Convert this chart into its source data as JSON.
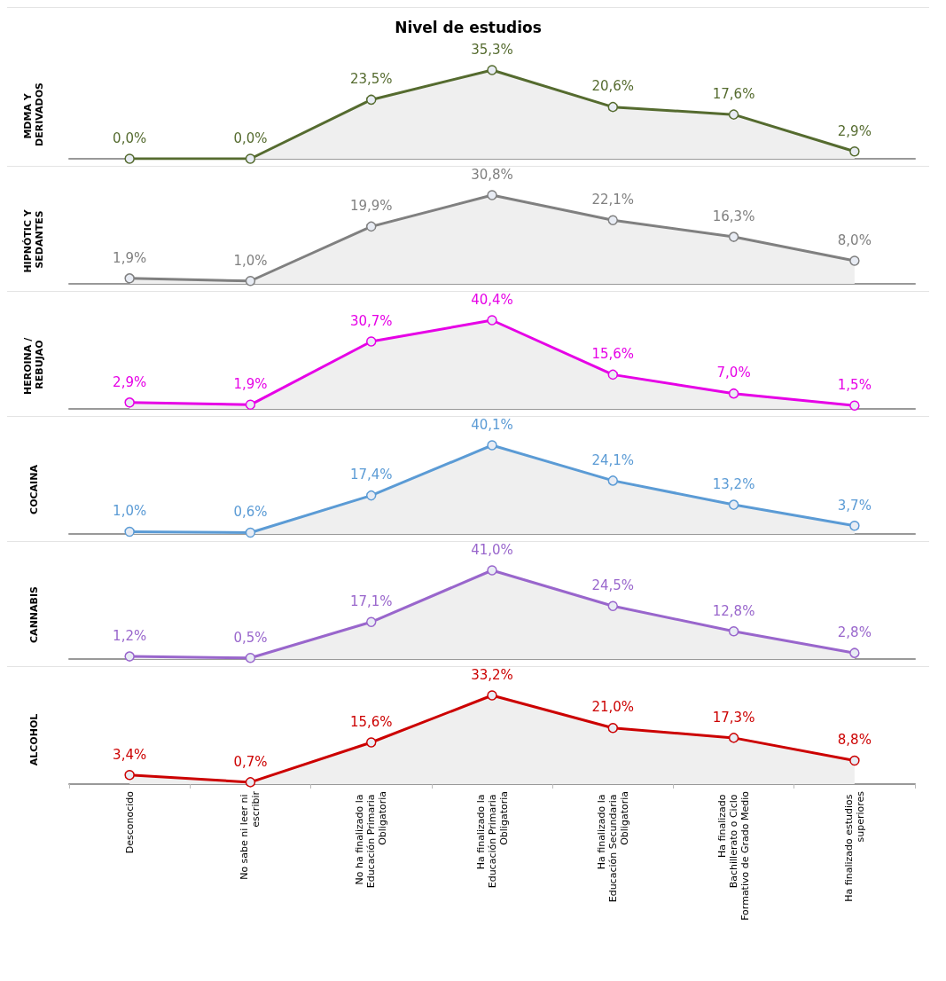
{
  "chart_data": [
    {
      "type": "area",
      "title": "Nivel de estudios",
      "ylabel": "MDMA Y DERIVADOS",
      "categories": [
        "Desconocido",
        "No sabe ni leer ni escribir",
        "No ha finalizado la Educación Primaria Obligatoria",
        "Ha finalizado la Educación Primaria Obligatoria",
        "Ha finalizado la Educación Secundaria Obligatoria",
        "Ha finalizado Bachillerato o Ciclo Formativo de Grado Medio",
        "Ha finalizado estudios superiores"
      ],
      "series": [
        {
          "color": "#556b2f",
          "values": [
            0.0,
            0.0,
            23.5,
            35.3,
            20.6,
            17.6,
            2.9
          ],
          "value_labels": [
            "0,0%",
            "0,0%",
            "23,5%",
            "35,3%",
            "20,6%",
            "17,6%",
            "2,9%"
          ]
        }
      ],
      "marker": "circle",
      "tick_labels": false
    },
    {
      "type": "area",
      "ylabel": "HIPNÓTIC Y SEDANTES",
      "categories": [
        "Desconocido",
        "No sabe ni leer ni escribir",
        "No ha finalizado la Educación Primaria Obligatoria",
        "Ha finalizado la Educación Primaria Obligatoria",
        "Ha finalizado la Educación Secundaria Obligatoria",
        "Ha finalizado Bachillerato o Ciclo Formativo de Grado Medio",
        "Ha finalizado estudios superiores"
      ],
      "series": [
        {
          "color": "#808080",
          "values": [
            1.9,
            1.0,
            19.9,
            30.8,
            22.1,
            16.3,
            8.0
          ],
          "value_labels": [
            "1,9%",
            "1,0%",
            "19,9%",
            "30,8%",
            "22,1%",
            "16,3%",
            "8,0%"
          ]
        }
      ],
      "marker": "circle",
      "tick_labels": false
    },
    {
      "type": "area",
      "ylabel": "HEROINA / REBUJAO",
      "categories": [
        "Desconocido",
        "No sabe ni leer ni escribir",
        "No ha finalizado la Educación Primaria Obligatoria",
        "Ha finalizado la Educación Primaria Obligatoria",
        "Ha finalizado la Educación Secundaria Obligatoria",
        "Ha finalizado Bachillerato o Ciclo Formativo de Grado Medio",
        "Ha finalizado estudios superiores"
      ],
      "series": [
        {
          "color": "#e600e6",
          "values": [
            2.9,
            1.9,
            30.7,
            40.4,
            15.6,
            7.0,
            1.5
          ],
          "value_labels": [
            "2,9%",
            "1,9%",
            "30,7%",
            "40,4%",
            "15,6%",
            "7,0%",
            "1,5%"
          ]
        }
      ],
      "marker": "circle",
      "tick_labels": false
    },
    {
      "type": "area",
      "ylabel": "COCAINA",
      "categories": [
        "Desconocido",
        "No sabe ni leer ni escribir",
        "No ha finalizado la Educación Primaria Obligatoria",
        "Ha finalizado la Educación Primaria Obligatoria",
        "Ha finalizado la Educación Secundaria Obligatoria",
        "Ha finalizado Bachillerato o Ciclo Formativo de Grado Medio",
        "Ha finalizado estudios superiores"
      ],
      "series": [
        {
          "color": "#5b9bd5",
          "values": [
            1.0,
            0.6,
            17.4,
            40.1,
            24.1,
            13.2,
            3.7
          ],
          "value_labels": [
            "1,0%",
            "0,6%",
            "17,4%",
            "40,1%",
            "24,1%",
            "13,2%",
            "3,7%"
          ]
        }
      ],
      "marker": "circle",
      "tick_labels": false
    },
    {
      "type": "area",
      "ylabel": "CANNABIS",
      "categories": [
        "Desconocido",
        "No sabe ni leer ni escribir",
        "No ha finalizado la Educación Primaria Obligatoria",
        "Ha finalizado la Educación Primaria Obligatoria",
        "Ha finalizado la Educación Secundaria Obligatoria",
        "Ha finalizado Bachillerato o Ciclo Formativo de Grado Medio",
        "Ha finalizado estudios superiores"
      ],
      "series": [
        {
          "color": "#9966cc",
          "values": [
            1.2,
            0.5,
            17.1,
            41.0,
            24.5,
            12.8,
            2.8
          ],
          "value_labels": [
            "1,2%",
            "0,5%",
            "17,1%",
            "41,0%",
            "24,5%",
            "12,8%",
            "2,8%"
          ]
        }
      ],
      "marker": "circle",
      "tick_labels": false
    },
    {
      "type": "area",
      "ylabel": "ALCOHOL",
      "categories": [
        "Desconocido",
        "No sabe ni leer ni escribir",
        "No ha finalizado la Educación Primaria Obligatoria",
        "Ha finalizado la Educación Primaria Obligatoria",
        "Ha finalizado la Educación Secundaria Obligatoria",
        "Ha finalizado Bachillerato o Ciclo Formativo de Grado Medio",
        "Ha finalizado estudios superiores"
      ],
      "series": [
        {
          "color": "#cc0000",
          "values": [
            3.4,
            0.7,
            15.6,
            33.2,
            21.0,
            17.3,
            8.8
          ],
          "value_labels": [
            "3,4%",
            "0,7%",
            "15,6%",
            "33,2%",
            "21,0%",
            "17,3%",
            "8,8%"
          ]
        }
      ],
      "marker": "circle",
      "tick_labels": "x"
    }
  ]
}
